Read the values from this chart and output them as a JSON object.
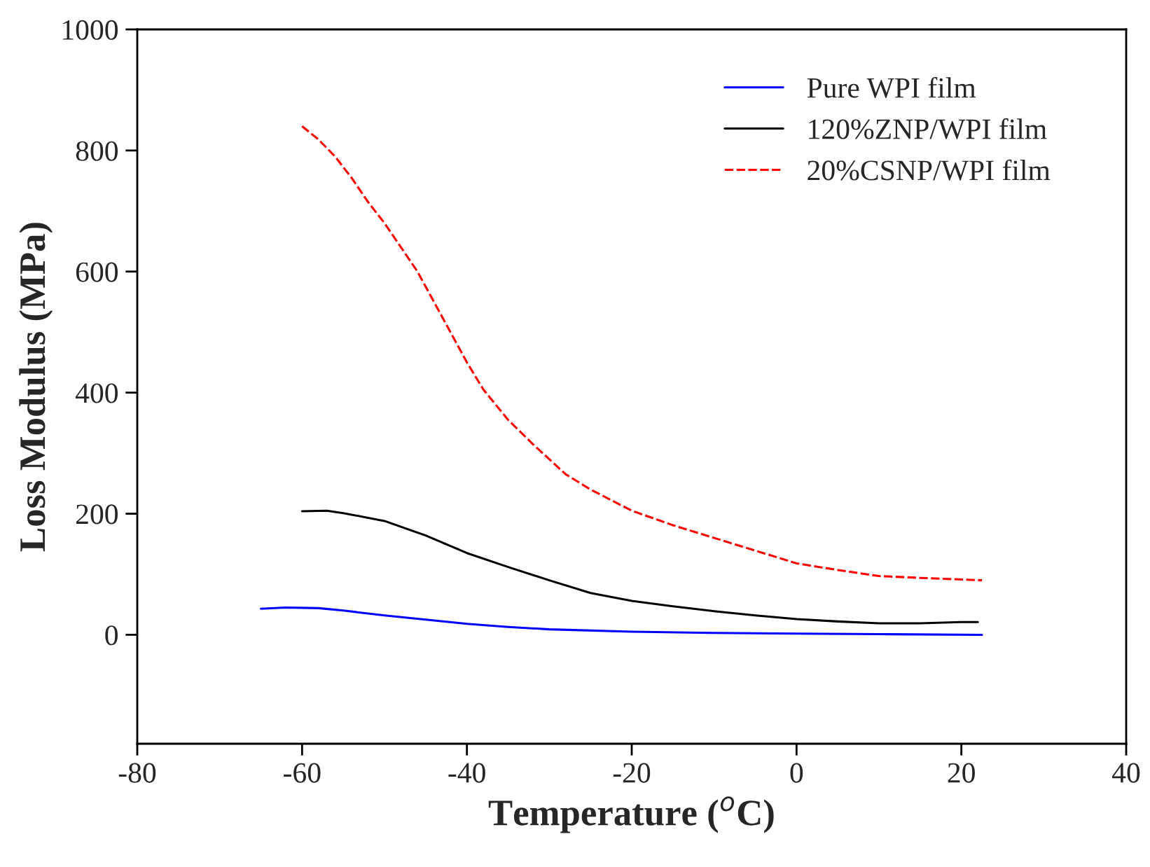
{
  "chart_data": {
    "type": "line",
    "xlabel": "Temperature ($^{o}$C)",
    "ylabel": "Loss Modulus (MPa)",
    "xlim": [
      -80,
      40
    ],
    "xticks": [
      -80,
      -60,
      -40,
      -20,
      0,
      20,
      40
    ],
    "ylim": [
      -180,
      1000
    ],
    "yticks": [
      0,
      200,
      400,
      600,
      800,
      1000
    ],
    "grid": false,
    "legend": "top right",
    "marker": "none",
    "series": [
      {
        "name": "Pure WPI film",
        "color": "#0000ff",
        "line_style": "solid",
        "x": [
          -65,
          -62,
          -58,
          -55,
          -50,
          -45,
          -40,
          -35,
          -30,
          -20,
          -10,
          0,
          10,
          22.5
        ],
        "values": [
          43,
          45,
          44,
          40,
          32,
          25,
          18,
          13,
          9,
          5,
          3,
          2,
          1,
          0
        ]
      },
      {
        "name": "120%ZNP/WPI film",
        "color": "#000000",
        "line_style": "solid",
        "x": [
          -60,
          -57,
          -55,
          -50,
          -45,
          -40,
          -35,
          -30,
          -25,
          -20,
          -15,
          -10,
          -5,
          0,
          5,
          10,
          15,
          20,
          22
        ],
        "values": [
          204,
          205,
          201,
          188,
          164,
          135,
          112,
          90,
          69,
          56,
          47,
          39,
          32,
          26,
          22,
          19,
          19,
          21,
          21
        ]
      },
      {
        "name": "20%CSNP/WPI film",
        "color": "#ff0000",
        "line_style": "dashed",
        "x": [
          -60,
          -58,
          -56,
          -54,
          -52,
          -50,
          -48,
          -46,
          -44,
          -42,
          -40,
          -38,
          -35,
          -32,
          -30,
          -28,
          -25,
          -20,
          -15,
          -10,
          -5,
          0,
          5,
          10,
          15,
          22.5
        ],
        "values": [
          840,
          818,
          790,
          755,
          715,
          680,
          640,
          600,
          550,
          500,
          450,
          405,
          355,
          315,
          290,
          265,
          240,
          205,
          181,
          160,
          139,
          118,
          107,
          97,
          94,
          90
        ]
      }
    ]
  }
}
